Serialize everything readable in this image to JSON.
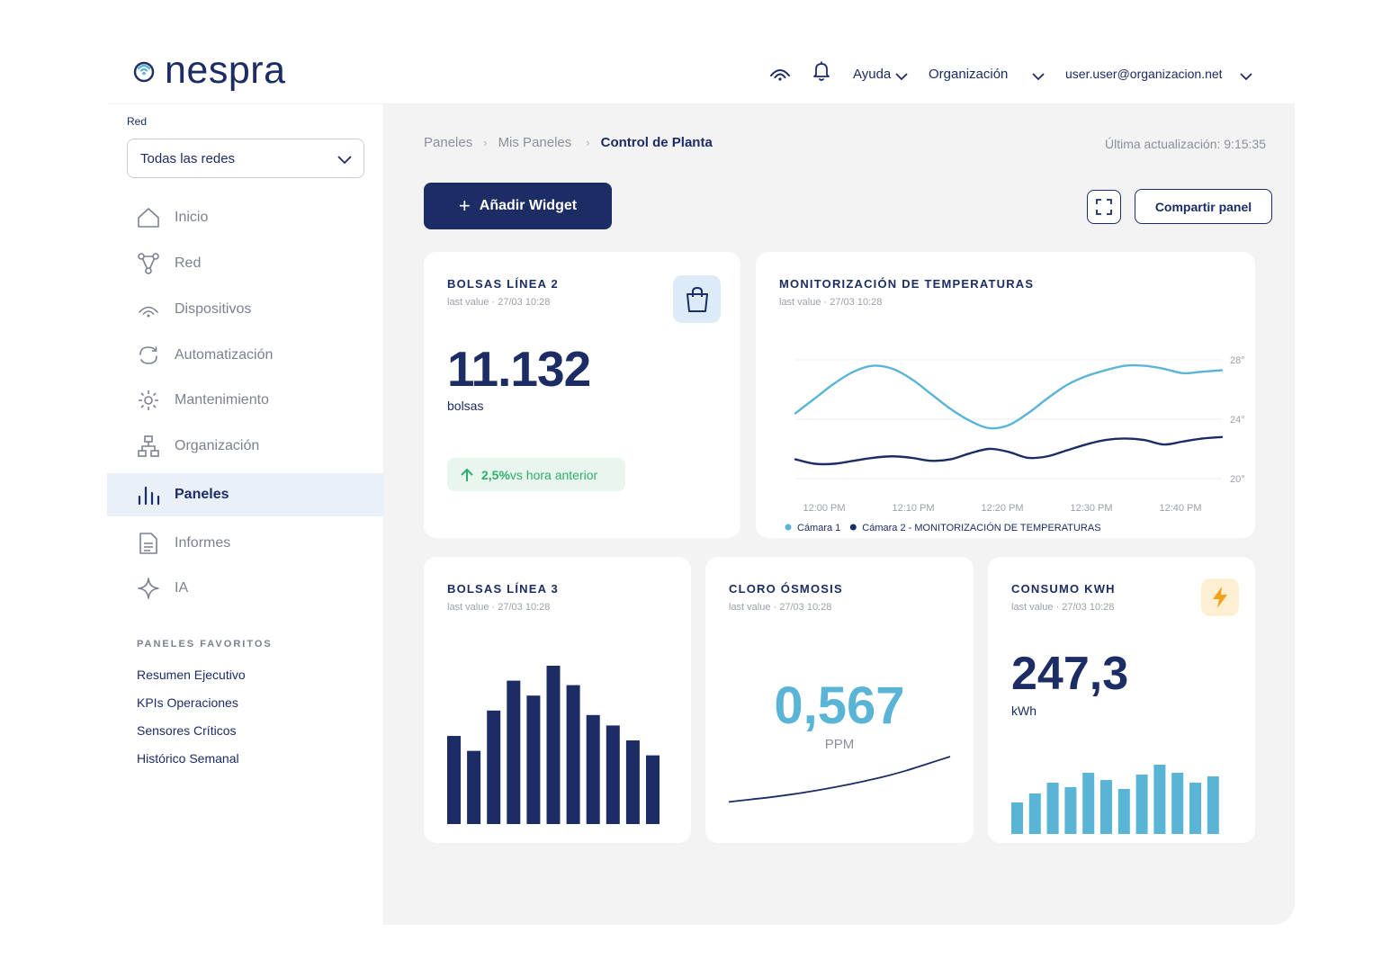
{
  "header": {
    "brand": "nespra",
    "help_label": "Ayuda",
    "org_label": "Organización",
    "user_email": "user.user@organizacion.net"
  },
  "sidebar": {
    "network_label": "Red",
    "network_value": "Todas las redes",
    "items": [
      {
        "label": "Inicio",
        "icon": "home-icon"
      },
      {
        "label": "Red",
        "icon": "network-icon"
      },
      {
        "label": "Dispositivos",
        "icon": "signal-icon"
      },
      {
        "label": "Automatización",
        "icon": "refresh-icon"
      },
      {
        "label": "Mantenimiento",
        "icon": "sun-gear-icon"
      },
      {
        "label": "Organización",
        "icon": "org-tree-icon"
      },
      {
        "label": "Paneles",
        "icon": "bar-chart-icon",
        "active": true
      },
      {
        "label": "Informes",
        "icon": "document-icon"
      },
      {
        "label": "IA",
        "icon": "sparkle-icon"
      }
    ],
    "favorites_title": "PANELES FAVORITOS",
    "favorites": [
      "Resumen Ejecutivo",
      "KPIs Operaciones",
      "Sensores Críticos",
      "Histórico Semanal"
    ]
  },
  "main": {
    "breadcrumbs": [
      "Paneles",
      "Mis Paneles",
      "Control de Planta"
    ],
    "updated": "Última actualización: 9:15:35",
    "add_widget": "Añadir Widget",
    "share": "Compartir panel"
  },
  "widgets": {
    "bolsas2": {
      "title": "BOLSAS LÍNEA 2",
      "sub": "last value · 27/03 10:28",
      "value": "11.132",
      "unit": "bolsas",
      "trend_value": "2,5%",
      "trend_text": "vs hora anterior"
    },
    "temps": {
      "title": "MONITORIZACIÓN DE TEMPERATURAS",
      "sub": "last value · 27/03 10:28"
    },
    "bolsas3": {
      "title": "BOLSAS LÍNEA 3",
      "sub": "last value · 27/03 10:28"
    },
    "cloro": {
      "title": "CLORO ÓSMOSIS",
      "sub": "last value · 27/03 10:28",
      "value": "0,567",
      "unit": "PPM"
    },
    "consumo": {
      "title": "CONSUMO KWH",
      "sub": "last value · 27/03 10:28",
      "value": "247,3",
      "unit": "kWh"
    }
  },
  "colors": {
    "navy": "#1c2c64",
    "light_blue": "#5ab4d6",
    "green": "#2fae6b",
    "amber": "#f2a31b"
  },
  "chart_data": [
    {
      "type": "line",
      "x": [
        "12:00 PM",
        "12:02 PM",
        "12:04 PM",
        "12:06 PM",
        "12:08 PM",
        "12:10 PM",
        "12:12 PM",
        "12:14 PM",
        "12:16 PM",
        "12:18 PM",
        "12:20 PM",
        "12:22 PM",
        "12:24 PM",
        "12:26 PM",
        "12:28 PM",
        "12:30 PM",
        "12:32 PM",
        "12:34 PM",
        "12:36 PM",
        "12:38 PM",
        "12:40 PM",
        "12:42 PM",
        "12:44 PM"
      ],
      "tick_labels": [
        "12:00 PM",
        "12:10 PM",
        "12:20 PM",
        "12:30 PM",
        "12:40 PM"
      ],
      "y_ticks": [
        "28°",
        "24°",
        "20°"
      ],
      "ylim": [
        20,
        28
      ],
      "grid": true,
      "legend_position": "bottom-left",
      "series": [
        {
          "name": "Cámara 1",
          "color": "#5ab4d6",
          "values": [
            24.4,
            25.4,
            26.4,
            27.2,
            27.6,
            27.4,
            26.7,
            25.7,
            24.7,
            23.9,
            23.4,
            23.6,
            24.4,
            25.4,
            26.3,
            26.9,
            27.3,
            27.6,
            27.6,
            27.4,
            27.1,
            27.2,
            27.3
          ]
        },
        {
          "name": "Cámara 2 - MONITORIZACIÓN DE TEMPERATURAS",
          "color": "#1c2c64",
          "values": [
            21.3,
            21.0,
            21.0,
            21.2,
            21.4,
            21.5,
            21.4,
            21.2,
            21.3,
            21.7,
            22.0,
            21.8,
            21.4,
            21.5,
            21.9,
            22.3,
            22.6,
            22.7,
            22.6,
            22.3,
            22.5,
            22.7,
            22.8
          ]
        }
      ]
    },
    {
      "type": "bar",
      "values": [
        59,
        49,
        76,
        96,
        86,
        106,
        93,
        73,
        66,
        56,
        46
      ],
      "color": "#1c2c64"
    },
    {
      "type": "line",
      "values": [
        0.1,
        0.15,
        0.2,
        0.26,
        0.33,
        0.41,
        0.5,
        0.6,
        0.72,
        0.86,
        1.0
      ],
      "color": "#1c2c64"
    },
    {
      "type": "bar",
      "values": [
        35,
        45,
        57,
        52,
        68,
        60,
        50,
        66,
        77,
        68,
        57,
        64
      ],
      "color": "#5ab4d6"
    }
  ]
}
